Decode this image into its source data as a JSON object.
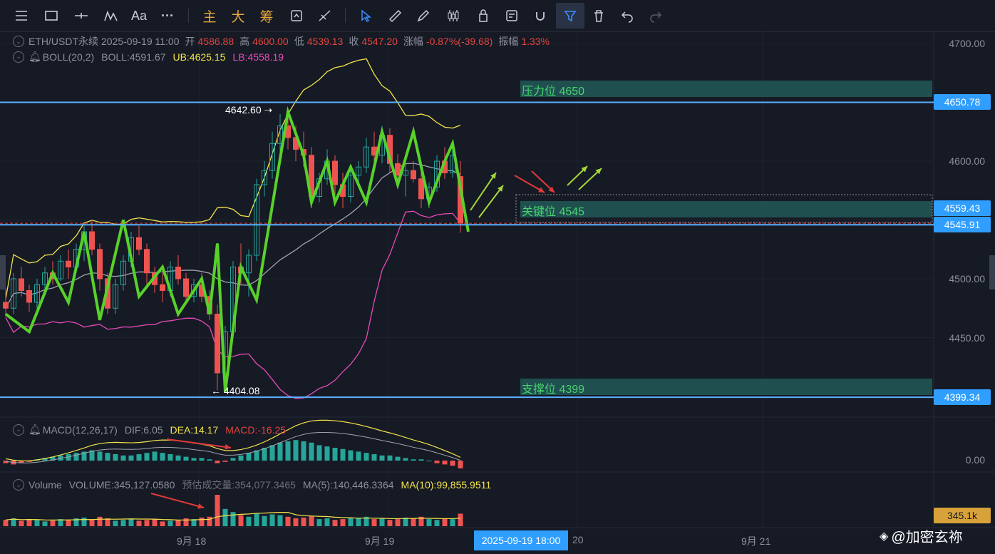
{
  "toolbar": {
    "icons": [
      "menu-icon",
      "rectangle-icon",
      "horizontal-line-icon",
      "indicator-icon"
    ],
    "font_label": "Aa",
    "more_label": "···",
    "cn_buttons": [
      "主",
      "大",
      "筹"
    ],
    "draw_icons": [
      "sync-icon",
      "tools-icon",
      "pointer-icon",
      "ruler-icon",
      "pencil-icon",
      "candles-icon",
      "lock-icon",
      "note-icon",
      "magnet-icon",
      "filter-icon",
      "trash-icon",
      "undo-icon",
      "redo-icon"
    ]
  },
  "header": {
    "symbol": "ETH/USDT永续",
    "datetime": "2025-09-19 11:00",
    "open_label": "开",
    "open": "4586.88",
    "high_label": "高",
    "high": "4600.00",
    "low_label": "低",
    "low": "4539.13",
    "close_label": "收",
    "close": "4547.20",
    "change_label": "涨幅",
    "change": "-0.87%(-39.68)",
    "amplitude_label": "振幅",
    "amplitude": "1.33%"
  },
  "boll": {
    "name": "BOLL(20,2)",
    "mid": "BOLL:4591.67",
    "ub": "UB:4625.15",
    "lb": "LB:4558.19"
  },
  "macd": {
    "name": "MACD(12,26,17)",
    "dif": "DIF:6.05",
    "dea": "DEA:14.17",
    "macd": "MACD:-16.25"
  },
  "volume": {
    "name": "Volume",
    "volume": "VOLUME:345,127.0580",
    "est_label": "预估成交量",
    "est": ":354,077.3465",
    "ma5": "MA(5):140,446.3364",
    "ma10": "MA(10):99,855.9511"
  },
  "price_axis": [
    "4700.00",
    "4650.00",
    "4600.00",
    "4550.00",
    "4500.00",
    "4450.00"
  ],
  "macd_axis": "0.00",
  "volume_badge": "345.1k",
  "levels": {
    "resistance": {
      "label": "压力位 4650",
      "badge": "4650.78"
    },
    "key": {
      "label": "关键位 4545",
      "badge_top": "4559.43",
      "badge_bottom": "4545.91"
    },
    "support": {
      "label": "支撑位 4399",
      "badge": "4399.34"
    }
  },
  "annotations": {
    "high": "4642.60",
    "low": "4404.08"
  },
  "x_axis": {
    "labels": [
      "9月 18",
      "9月 19",
      "20",
      "9月 21"
    ],
    "crosshair_time": "2025-09-19 18:00"
  },
  "watermark": "@加密玄祢",
  "colors": {
    "up": "#26a69a",
    "down": "#ef5350",
    "boll_mid": "#a0a4ae",
    "boll_ub": "#f2e34a",
    "boll_lb": "#e84bb8",
    "zigzag": "#58d12a",
    "level_line": "#5ab0ff",
    "zone": "#1f4f4f"
  },
  "chart_data": {
    "type": "candlestick",
    "timeframe": "1h",
    "candles": [
      [
        4480,
        4492,
        4468,
        4475
      ],
      [
        4475,
        4505,
        4470,
        4500
      ],
      [
        4500,
        4510,
        4485,
        4490
      ],
      [
        4490,
        4495,
        4472,
        4480
      ],
      [
        4480,
        4500,
        4475,
        4495
      ],
      [
        4495,
        4510,
        4490,
        4505
      ],
      [
        4505,
        4515,
        4495,
        4500
      ],
      [
        4500,
        4520,
        4498,
        4515
      ],
      [
        4515,
        4525,
        4500,
        4510
      ],
      [
        4510,
        4530,
        4505,
        4525
      ],
      [
        4525,
        4545,
        4515,
        4540
      ],
      [
        4540,
        4550,
        4520,
        4525
      ],
      [
        4525,
        4530,
        4490,
        4500
      ],
      [
        4500,
        4505,
        4470,
        4475
      ],
      [
        4475,
        4500,
        4470,
        4495
      ],
      [
        4495,
        4520,
        4490,
        4515
      ],
      [
        4515,
        4540,
        4510,
        4535
      ],
      [
        4535,
        4545,
        4520,
        4525
      ],
      [
        4525,
        4530,
        4495,
        4505
      ],
      [
        4505,
        4510,
        4488,
        4495
      ],
      [
        4495,
        4505,
        4480,
        4490
      ],
      [
        4490,
        4515,
        4485,
        4510
      ],
      [
        4510,
        4520,
        4495,
        4500
      ],
      [
        4500,
        4505,
        4480,
        4485
      ],
      [
        4485,
        4500,
        4480,
        4495
      ],
      [
        4495,
        4505,
        4480,
        4485
      ],
      [
        4485,
        4490,
        4465,
        4470
      ],
      [
        4470,
        4478,
        4405,
        4420
      ],
      [
        4420,
        4460,
        4404,
        4455
      ],
      [
        4455,
        4515,
        4450,
        4510
      ],
      [
        4510,
        4530,
        4495,
        4505
      ],
      [
        4505,
        4525,
        4485,
        4520
      ],
      [
        4520,
        4585,
        4515,
        4580
      ],
      [
        4580,
        4600,
        4570,
        4592
      ],
      [
        4592,
        4625,
        4585,
        4615
      ],
      [
        4615,
        4640,
        4605,
        4630
      ],
      [
        4630,
        4643,
        4610,
        4620
      ],
      [
        4620,
        4630,
        4600,
        4610
      ],
      [
        4610,
        4625,
        4595,
        4605
      ],
      [
        4605,
        4612,
        4560,
        4570
      ],
      [
        4570,
        4590,
        4565,
        4585
      ],
      [
        4585,
        4610,
        4580,
        4600
      ],
      [
        4600,
        4605,
        4570,
        4580
      ],
      [
        4580,
        4590,
        4560,
        4570
      ],
      [
        4570,
        4592,
        4565,
        4588
      ],
      [
        4588,
        4600,
        4578,
        4595
      ],
      [
        4595,
        4620,
        4590,
        4612
      ],
      [
        4612,
        4625,
        4600,
        4605
      ],
      [
        4605,
        4630,
        4598,
        4622
      ],
      [
        4622,
        4628,
        4590,
        4598
      ],
      [
        4598,
        4606,
        4580,
        4588
      ],
      [
        4588,
        4598,
        4570,
        4592
      ],
      [
        4592,
        4600,
        4582,
        4585
      ],
      [
        4585,
        4592,
        4560,
        4568
      ],
      [
        4568,
        4582,
        4560,
        4578
      ],
      [
        4578,
        4605,
        4574,
        4600
      ],
      [
        4600,
        4612,
        4585,
        4590
      ],
      [
        4590,
        4610,
        4586,
        4605
      ],
      [
        4586.88,
        4600,
        4539.13,
        4547.2
      ]
    ],
    "volumes": [
      8,
      10,
      7,
      9,
      8,
      6,
      7,
      9,
      8,
      10,
      11,
      9,
      12,
      10,
      7,
      8,
      9,
      7,
      8,
      9,
      6,
      7,
      8,
      10,
      9,
      11,
      12,
      40,
      22,
      18,
      14,
      12,
      16,
      13,
      15,
      14,
      12,
      10,
      11,
      13,
      9,
      10,
      8,
      9,
      11,
      10,
      12,
      9,
      10,
      8,
      9,
      11,
      10,
      12,
      9,
      8,
      10,
      9,
      16
    ],
    "macd_hist": [
      -2,
      -3,
      -2,
      -1,
      1,
      2,
      3,
      4,
      5,
      6,
      7,
      8,
      7,
      6,
      5,
      4,
      4,
      5,
      6,
      7,
      6,
      5,
      4,
      3,
      2,
      2,
      1,
      -2,
      -1,
      2,
      4,
      6,
      8,
      10,
      12,
      14,
      15,
      16,
      15,
      14,
      12,
      11,
      10,
      9,
      8,
      7,
      6,
      5,
      4,
      4,
      3,
      2,
      1,
      1,
      0,
      -2,
      -3,
      -4,
      -6
    ],
    "annotations": {
      "high": 4642.6,
      "low": 4404.08
    },
    "levels": [
      4650,
      4545,
      4399
    ],
    "y_range": [
      4385,
      4710
    ]
  }
}
